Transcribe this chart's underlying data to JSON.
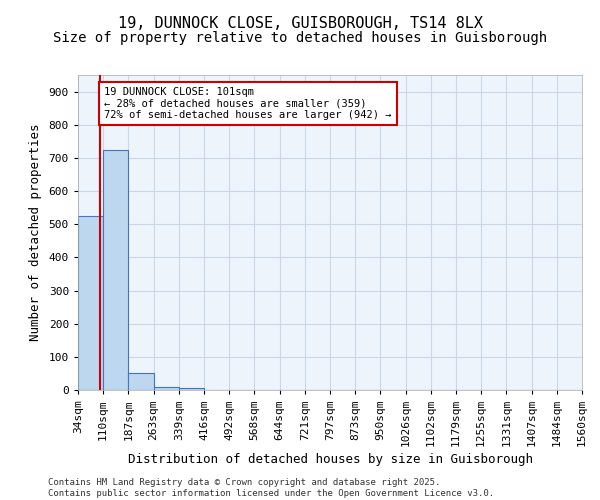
{
  "title1": "19, DUNNOCK CLOSE, GUISBOROUGH, TS14 8LX",
  "title2": "Size of property relative to detached houses in Guisborough",
  "xlabel": "Distribution of detached houses by size in Guisborough",
  "ylabel": "Number of detached properties",
  "bin_labels": [
    "34sqm",
    "110sqm",
    "187sqm",
    "263sqm",
    "339sqm",
    "416sqm",
    "492sqm",
    "568sqm",
    "644sqm",
    "721sqm",
    "797sqm",
    "873sqm",
    "950sqm",
    "1026sqm",
    "1102sqm",
    "1179sqm",
    "1255sqm",
    "1331sqm",
    "1407sqm",
    "1484sqm",
    "1560sqm"
  ],
  "bar_values": [
    525,
    725,
    50,
    10,
    5,
    0,
    0,
    0,
    0,
    0,
    0,
    0,
    0,
    0,
    0,
    0,
    0,
    0,
    0,
    0
  ],
  "bar_color": "#bdd7ee",
  "bar_edge_color": "#4472c4",
  "property_sqm": 101,
  "annotation_text": "19 DUNNOCK CLOSE: 101sqm\n← 28% of detached houses are smaller (359)\n72% of semi-detached houses are larger (942) →",
  "annotation_box_color": "#ffffff",
  "annotation_box_edge": "#cc0000",
  "red_line_color": "#cc0000",
  "ylim": [
    0,
    950
  ],
  "yticks": [
    0,
    100,
    200,
    300,
    400,
    500,
    600,
    700,
    800,
    900
  ],
  "grid_color": "#c8d8e8",
  "background_color": "#eef4fb",
  "footer_text": "Contains HM Land Registry data © Crown copyright and database right 2025.\nContains public sector information licensed under the Open Government Licence v3.0.",
  "title_fontsize": 11,
  "subtitle_fontsize": 10,
  "axis_label_fontsize": 9,
  "tick_fontsize": 8
}
